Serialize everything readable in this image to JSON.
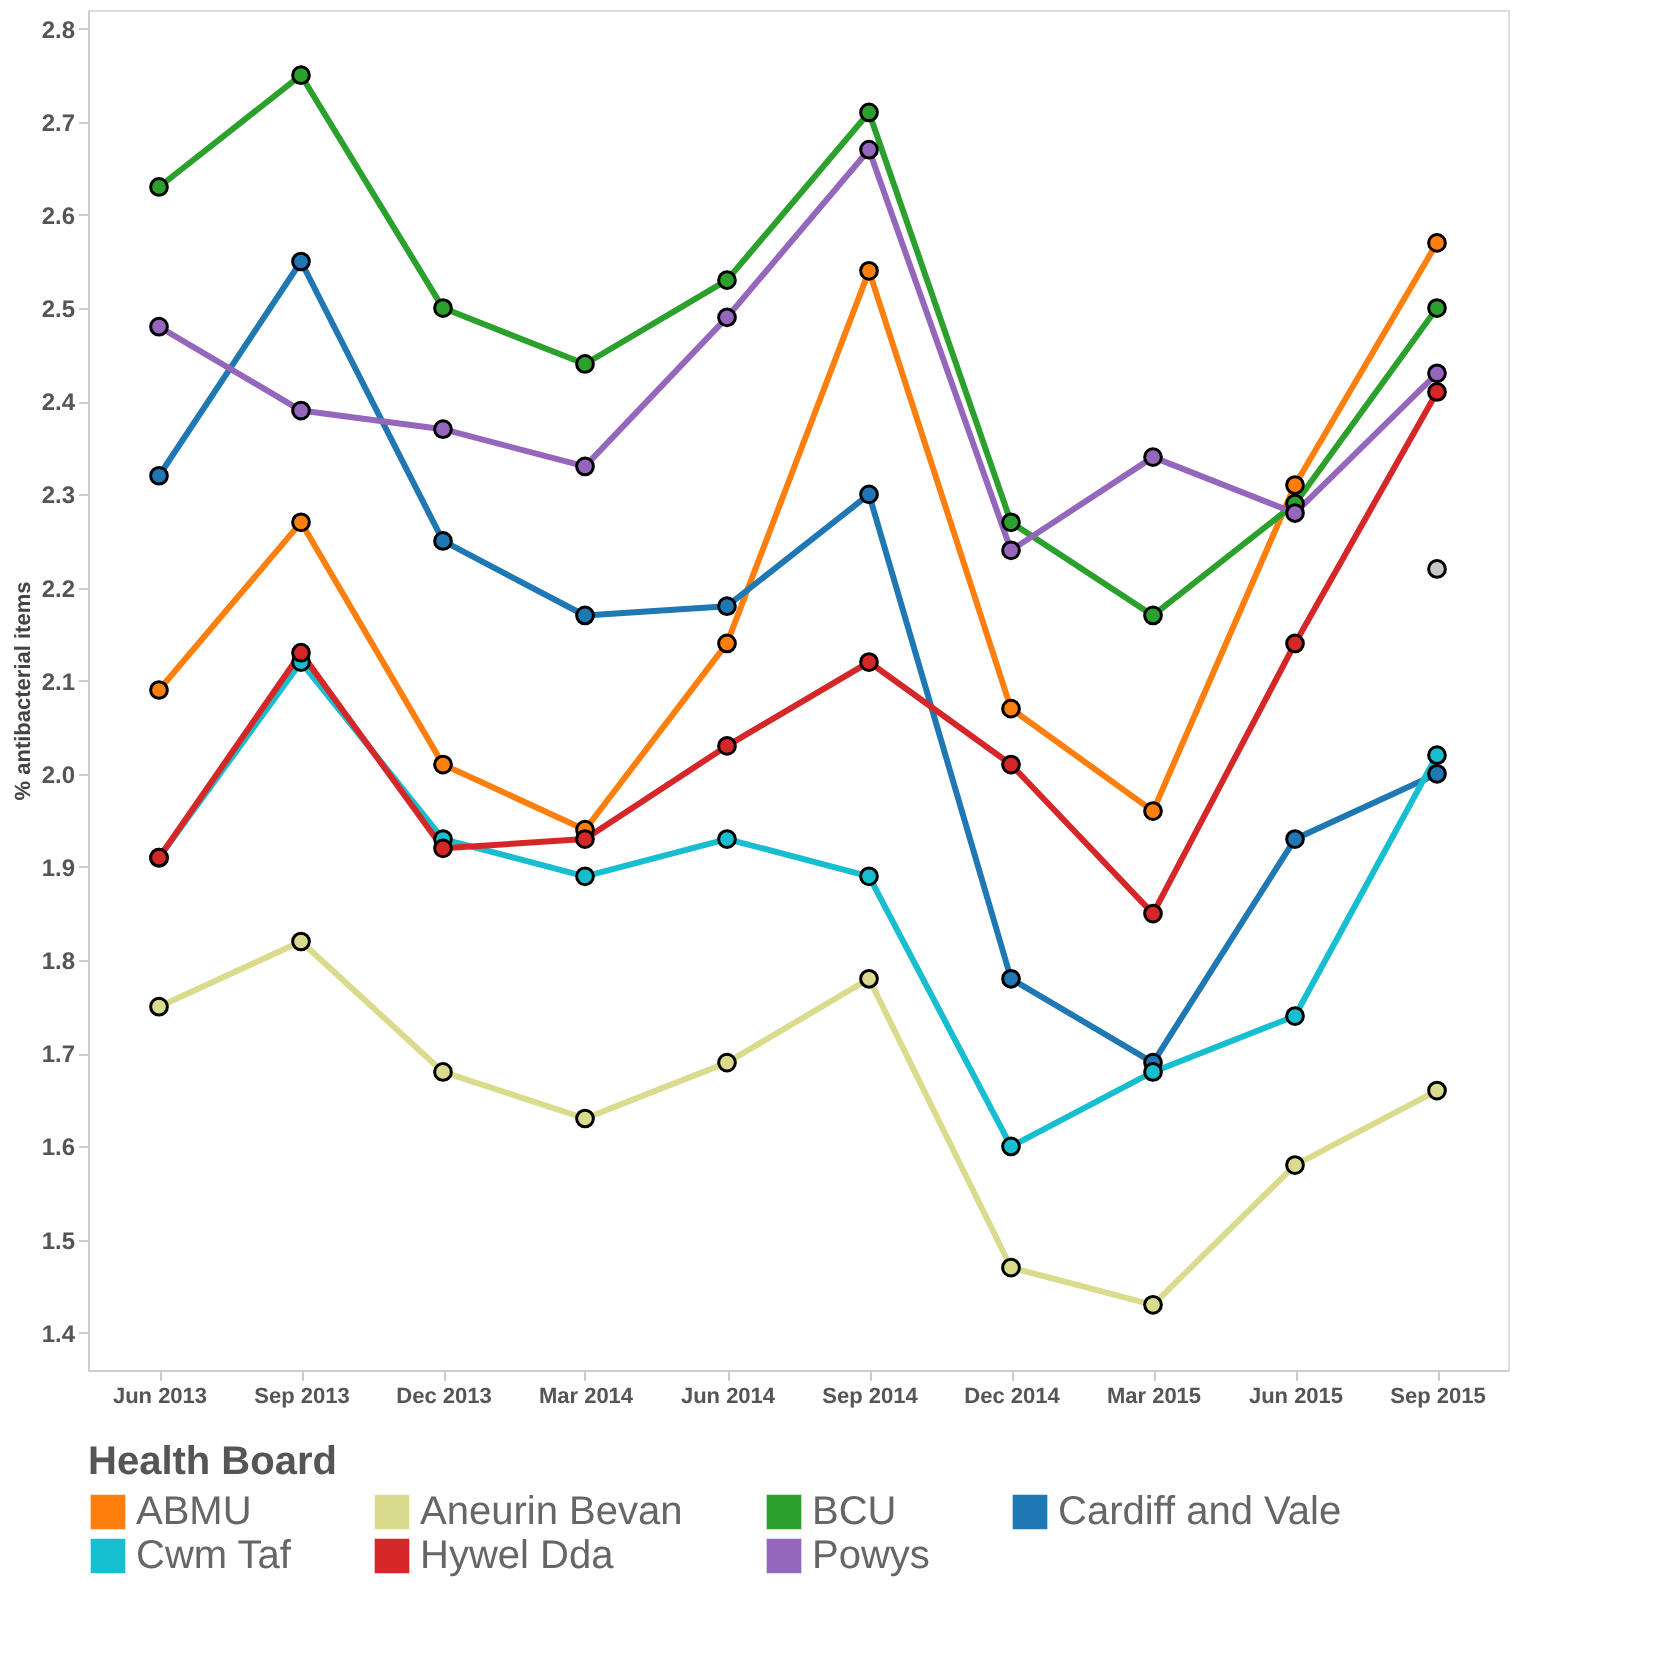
{
  "chart_data": {
    "type": "line",
    "ylabel": "% antibacterial items",
    "legend_title": "Health Board",
    "legend": "bottom",
    "grid": false,
    "marker": "circle",
    "categories": [
      "Jun 2013",
      "Sep 2013",
      "Dec 2013",
      "Mar 2014",
      "Jun 2014",
      "Sep 2014",
      "Dec 2014",
      "Mar 2015",
      "Jun 2015",
      "Sep 2015"
    ],
    "ylim": [
      1.36,
      2.82
    ],
    "yticks": [
      1.4,
      1.5,
      1.6,
      1.7,
      1.8,
      1.9,
      {
        "value": 2.0,
        "label": "2.0"
      },
      2.1,
      2.2,
      2.3,
      2.4,
      2.5,
      2.6,
      2.7,
      2.8
    ],
    "series": [
      {
        "name": "ABMU",
        "color": "#ff7f0e",
        "values": [
          2.09,
          2.27,
          2.01,
          1.94,
          2.14,
          2.54,
          2.07,
          1.96,
          2.31,
          2.57
        ]
      },
      {
        "name": "Aneurin Bevan",
        "color": "#dbdb8d",
        "values": [
          1.75,
          1.82,
          1.68,
          1.63,
          1.69,
          1.78,
          1.47,
          1.43,
          1.58,
          1.66
        ]
      },
      {
        "name": "BCU",
        "color": "#2ca02c",
        "values": [
          2.63,
          2.75,
          2.5,
          2.44,
          2.53,
          2.71,
          2.27,
          2.17,
          2.29,
          2.5
        ]
      },
      {
        "name": "Cardiff and Vale",
        "color": "#1f77b4",
        "values": [
          2.32,
          2.55,
          2.25,
          2.17,
          2.18,
          2.3,
          1.78,
          1.69,
          1.93,
          2.0
        ]
      },
      {
        "name": "Cwm Taf",
        "color": "#17becf",
        "values": [
          1.91,
          2.12,
          1.93,
          1.89,
          1.93,
          1.89,
          1.6,
          1.68,
          1.74,
          2.02
        ]
      },
      {
        "name": "Hywel Dda",
        "color": "#d62728",
        "values": [
          1.91,
          2.13,
          1.92,
          1.93,
          2.03,
          2.12,
          2.01,
          1.85,
          2.14,
          2.41
        ]
      },
      {
        "name": "Powys",
        "color": "#9467bd",
        "values": [
          2.48,
          2.39,
          2.37,
          2.33,
          2.49,
          2.67,
          2.24,
          2.34,
          2.28,
          2.43
        ]
      },
      {
        "type": "scatter",
        "color": "#c7c7c7",
        "values": [
          null,
          null,
          null,
          null,
          null,
          null,
          null,
          null,
          null,
          2.22
        ]
      }
    ]
  }
}
